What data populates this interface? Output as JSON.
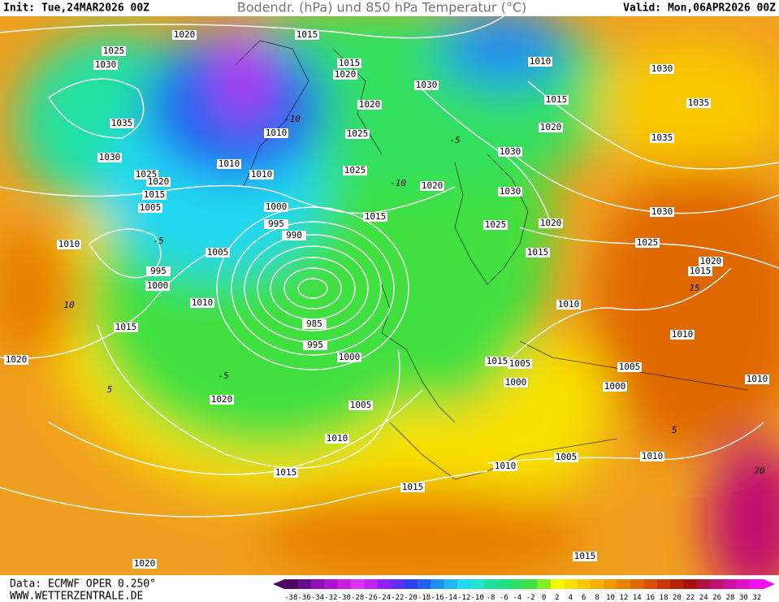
{
  "header": {
    "init": "Init: Tue,24MAR2026 00Z",
    "title": "Bodendr. (hPa) und 850 hPa Temperatur (°C)",
    "valid": "Valid: Mon,06APR2026 00Z"
  },
  "footer": {
    "source": "Data: ECMWF OPER 0.250°",
    "site": "WWW.WETTERZENTRALE.DE"
  },
  "isobar_labels": [
    "1020",
    "1015",
    "1025",
    "1030",
    "1015",
    "1020",
    "1010",
    "1030",
    "1035",
    "1030",
    "1035",
    "1020",
    "1015",
    "1025",
    "1020",
    "1010",
    "1035",
    "1030",
    "1030",
    "1010",
    "1025",
    "1020",
    "1010",
    "1025",
    "1020",
    "1030",
    "1015",
    "1005",
    "1000",
    "1015",
    "995",
    "990",
    "1030",
    "1020",
    "1025",
    "1025",
    "1010",
    "1005",
    "1015",
    "995",
    "1020",
    "1015",
    "1000",
    "1010",
    "1010",
    "985",
    "1015",
    "995",
    "1010",
    "1000",
    "1020",
    "1015",
    "1005",
    "1005",
    "1000",
    "1000",
    "1010",
    "1020",
    "1005",
    "1010",
    "1005",
    "1010",
    "1010",
    "1015",
    "1015",
    "1015",
    "1020"
  ],
  "temperature_labels": [
    "-10",
    "-5",
    "5",
    "-5",
    "10",
    "15",
    "20",
    "-10",
    "-5",
    "5"
  ],
  "legend": {
    "ticks": [
      -38,
      -36,
      -34,
      -32,
      -30,
      -28,
      -26,
      -24,
      -22,
      -20,
      -18,
      -16,
      -14,
      -12,
      -10,
      -8,
      -6,
      -4,
      -2,
      0,
      2,
      4,
      6,
      8,
      10,
      12,
      14,
      16,
      18,
      20,
      22,
      24,
      26,
      28,
      30,
      32
    ],
    "colors": [
      "#4b0860",
      "#6a0a8c",
      "#8c10b4",
      "#b010d0",
      "#cc20e0",
      "#e030f0",
      "#c020f0",
      "#9020f0",
      "#6030f0",
      "#3040f0",
      "#2060f0",
      "#2090f0",
      "#20b8f0",
      "#20d8f0",
      "#20e8d0",
      "#20e0a0",
      "#20e080",
      "#30e060",
      "#40e040",
      "#80f020",
      "#f8f800",
      "#f8e000",
      "#f8c800",
      "#f8b000",
      "#f09800",
      "#e88000",
      "#e06800",
      "#d85000",
      "#c83800",
      "#b82000",
      "#a81010",
      "#b01040",
      "#c01070",
      "#d010a0",
      "#e010c8",
      "#f010f0"
    ]
  }
}
